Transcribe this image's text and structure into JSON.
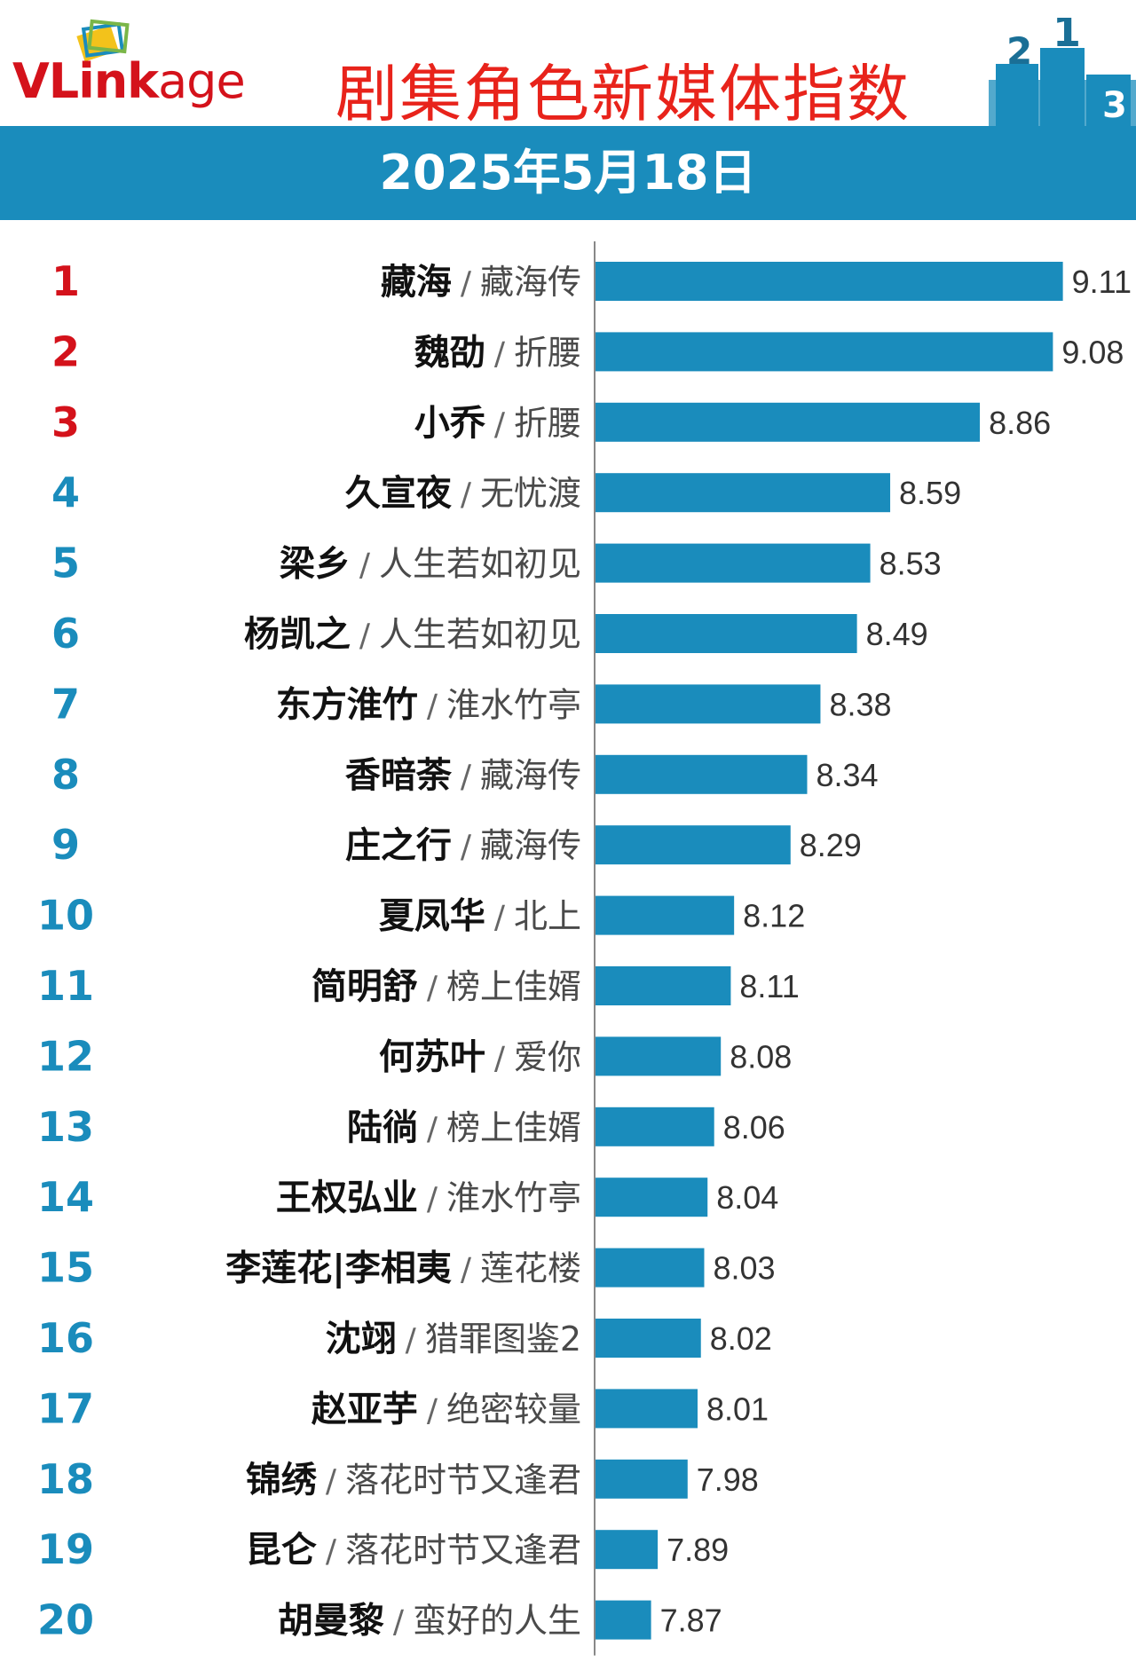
{
  "header": {
    "logo_v": "V",
    "logo_rest": "Link",
    "logo_age": "age",
    "title": "剧集角色新媒体指数",
    "date": "2025年5月18日",
    "podium_labels": [
      "2",
      "1",
      "3"
    ]
  },
  "colors": {
    "brand": "#1a8cbc",
    "title": "#e8231b",
    "rank_top3": "#d4121b",
    "rank_other": "#1a8cbc",
    "bar": "#1a8cbc"
  },
  "chart_data": {
    "type": "bar",
    "orientation": "horizontal",
    "separator": "/",
    "xlim": [
      7.7,
      9.25
    ],
    "grid": false,
    "rows": [
      {
        "rank": "1",
        "role": "藏海",
        "show": "藏海传",
        "value": 9.11,
        "label": "9.11"
      },
      {
        "rank": "2",
        "role": "魏劭",
        "show": "折腰",
        "value": 9.08,
        "label": "9.08"
      },
      {
        "rank": "3",
        "role": "小乔",
        "show": "折腰",
        "value": 8.86,
        "label": "8.86"
      },
      {
        "rank": "4",
        "role": "久宣夜",
        "show": "无忧渡",
        "value": 8.59,
        "label": "8.59"
      },
      {
        "rank": "5",
        "role": "梁乡",
        "show": "人生若如初见",
        "value": 8.53,
        "label": "8.53"
      },
      {
        "rank": "6",
        "role": "杨凯之",
        "show": "人生若如初见",
        "value": 8.49,
        "label": "8.49"
      },
      {
        "rank": "7",
        "role": "东方淮竹",
        "show": "淮水竹亭",
        "value": 8.38,
        "label": "8.38"
      },
      {
        "rank": "8",
        "role": "香暗荼",
        "show": "藏海传",
        "value": 8.34,
        "label": "8.34"
      },
      {
        "rank": "9",
        "role": "庄之行",
        "show": "藏海传",
        "value": 8.29,
        "label": "8.29"
      },
      {
        "rank": "10",
        "role": "夏凤华",
        "show": "北上",
        "value": 8.12,
        "label": "8.12"
      },
      {
        "rank": "11",
        "role": "简明舒",
        "show": "榜上佳婿",
        "value": 8.11,
        "label": "8.11"
      },
      {
        "rank": "12",
        "role": "何苏叶",
        "show": "爱你",
        "value": 8.08,
        "label": "8.08"
      },
      {
        "rank": "13",
        "role": "陆徜",
        "show": "榜上佳婿",
        "value": 8.06,
        "label": "8.06"
      },
      {
        "rank": "14",
        "role": "王权弘业",
        "show": "淮水竹亭",
        "value": 8.04,
        "label": "8.04"
      },
      {
        "rank": "15",
        "role": "李莲花|李相夷",
        "show": "莲花楼",
        "value": 8.03,
        "label": "8.03"
      },
      {
        "rank": "16",
        "role": "沈翊",
        "show": "猎罪图鉴2",
        "value": 8.02,
        "label": "8.02"
      },
      {
        "rank": "17",
        "role": "赵亚芋",
        "show": "绝密较量",
        "value": 8.01,
        "label": "8.01"
      },
      {
        "rank": "18",
        "role": "锦绣",
        "show": "落花时节又逢君",
        "value": 7.98,
        "label": "7.98"
      },
      {
        "rank": "19",
        "role": "昆仑",
        "show": "落花时节又逢君",
        "value": 7.89,
        "label": "7.89"
      },
      {
        "rank": "20",
        "role": "胡曼黎",
        "show": "蛮好的人生",
        "value": 7.87,
        "label": "7.87"
      }
    ]
  }
}
